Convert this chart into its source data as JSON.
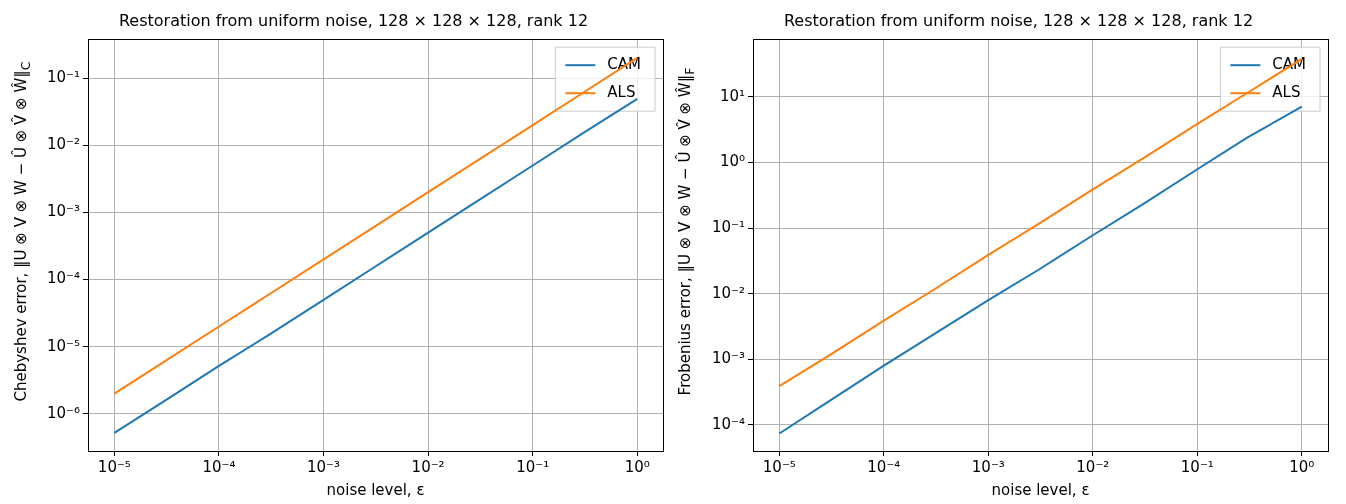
{
  "chart_data": [
    {
      "type": "line",
      "title": "Restoration from uniform noise, 128 × 128 × 128, rank 12",
      "xlabel": "noise level, ε",
      "ylabel": "Chebyshev error, ‖U ⊗ V ⊗ W − Û ⊗ V̂ ⊗ Ŵ‖$_{C}$",
      "log": "xy",
      "grid": true,
      "legend": "top right",
      "x": [
        1e-05,
        3e-05,
        0.0001,
        0.0003,
        0.001,
        0.003,
        0.01,
        0.03,
        0.1,
        0.3,
        1
      ],
      "xlim": [
        5.6e-06,
        1.76
      ],
      "ylim": [
        2.8e-07,
        0.38
      ],
      "xticks": [
        {
          "value": 1e-05,
          "label": "10⁻⁵"
        },
        {
          "value": 0.0001,
          "label": "10⁻⁴"
        },
        {
          "value": 0.001,
          "label": "10⁻³"
        },
        {
          "value": 0.01,
          "label": "10⁻²"
        },
        {
          "value": 0.1,
          "label": "10⁻¹"
        },
        {
          "value": 1,
          "label": "10⁰"
        }
      ],
      "yticks": [
        {
          "value": 1e-06,
          "label": "10⁻⁶"
        },
        {
          "value": 1e-05,
          "label": "10⁻⁵"
        },
        {
          "value": 0.0001,
          "label": "10⁻⁴"
        },
        {
          "value": 0.001,
          "label": "10⁻³"
        },
        {
          "value": 0.01,
          "label": "10⁻²"
        },
        {
          "value": 0.1,
          "label": "10⁻¹"
        }
      ],
      "series": [
        {
          "name": "CAM",
          "color": "#1f77b4",
          "values": [
            5.2e-07,
            1.55e-06,
            5.2e-06,
            1.5e-05,
            5e-05,
            0.00015,
            0.0005,
            0.0015,
            0.005,
            0.015,
            0.049
          ]
        },
        {
          "name": "ALS",
          "color": "#ff7f0e",
          "values": [
            2e-06,
            6e-06,
            2e-05,
            6e-05,
            0.0002,
            0.0006,
            0.002,
            0.006,
            0.02,
            0.06,
            0.2
          ]
        }
      ]
    },
    {
      "type": "line",
      "title": "Restoration from uniform noise, 128 × 128 × 128, rank 12",
      "xlabel": "noise level, ε",
      "ylabel": "Frobenius error, ‖U ⊗ V ⊗ W − Û ⊗ V̂ ⊗ Ŵ‖$_{F}$",
      "log": "xy",
      "grid": true,
      "legend": "top right",
      "x": [
        1e-05,
        3e-05,
        0.0001,
        0.0003,
        0.001,
        0.003,
        0.01,
        0.03,
        0.1,
        0.3,
        1
      ],
      "xlim": [
        5.6e-06,
        1.78
      ],
      "ylim": [
        4e-05,
        76
      ],
      "xticks": [
        {
          "value": 1e-05,
          "label": "10⁻⁵"
        },
        {
          "value": 0.0001,
          "label": "10⁻⁴"
        },
        {
          "value": 0.001,
          "label": "10⁻³"
        },
        {
          "value": 0.01,
          "label": "10⁻²"
        },
        {
          "value": 0.1,
          "label": "10⁻¹"
        },
        {
          "value": 1,
          "label": "10⁰"
        }
      ],
      "yticks": [
        {
          "value": 0.0001,
          "label": "10⁻⁴"
        },
        {
          "value": 0.001,
          "label": "10⁻³"
        },
        {
          "value": 0.01,
          "label": "10⁻²"
        },
        {
          "value": 0.1,
          "label": "10⁻¹"
        },
        {
          "value": 1,
          "label": "10⁰"
        },
        {
          "value": 10,
          "label": "10¹"
        }
      ],
      "series": [
        {
          "name": "CAM",
          "color": "#1f77b4",
          "values": [
            7.4e-05,
            0.00023,
            0.0008,
            0.0024,
            0.008,
            0.023,
            0.078,
            0.23,
            0.79,
            2.4,
            7.1
          ]
        },
        {
          "name": "ALS",
          "color": "#ff7f0e",
          "values": [
            0.00039,
            0.00115,
            0.0039,
            0.0115,
            0.039,
            0.115,
            0.39,
            1.15,
            3.9,
            11.5,
            38
          ]
        }
      ]
    }
  ]
}
